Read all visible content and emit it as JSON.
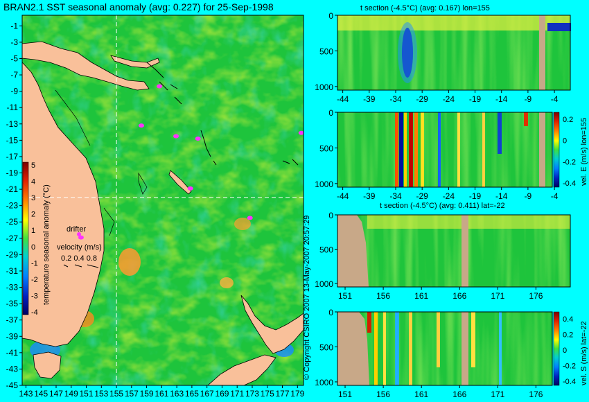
{
  "colors": {
    "background": "#00ffff",
    "ocean_base": "#1ec43c",
    "land": "#f9c09a",
    "section_land": "#c8a888",
    "drifter": "#ff33ff"
  },
  "chart_data": [
    {
      "id": "map",
      "type": "heatmap",
      "title": "BRAN2.1 SST seasonal anomaly (avg: 0.227) for 25-Sep-1998",
      "x": {
        "ticks": [
          143,
          145,
          147,
          149,
          151,
          153,
          155,
          157,
          159,
          161,
          163,
          165,
          167,
          169,
          171,
          173,
          175,
          177,
          179
        ],
        "range": [
          142.5,
          179.8
        ]
      },
      "y": {
        "ticks": [
          -1,
          -3,
          -5,
          -7,
          -9,
          -11,
          -13,
          -15,
          -17,
          -19,
          -21,
          -23,
          -25,
          -27,
          -29,
          -31,
          -33,
          -35,
          -37,
          -39,
          -41,
          -43,
          -45
        ],
        "range": [
          0.3,
          -45
        ]
      },
      "crosshair": {
        "lon": 155,
        "lat": -22
      },
      "colorbar": {
        "label": "temperature seasonal anomaly (°C)",
        "ticks": [
          "5",
          "4",
          "3",
          "2",
          "1",
          "0",
          "-1",
          "-2",
          "-3",
          "-4"
        ]
      },
      "legend": {
        "drifter": "drifter",
        "velocity_label": "velocity (m/s)",
        "velocity_values": "0.2 0.4 0.8"
      },
      "drifters": [
        {
          "lon": 160.7,
          "lat": -8.4
        },
        {
          "lon": 158.3,
          "lat": -13.2
        },
        {
          "lon": 162.9,
          "lat": -14.5
        },
        {
          "lon": 165.8,
          "lat": -14.8
        },
        {
          "lon": 179.5,
          "lat": -14.1
        },
        {
          "lon": 164.8,
          "lat": -20.9
        },
        {
          "lon": 172.7,
          "lat": -24.5
        },
        {
          "lon": 150.3,
          "lat": -26.9
        }
      ]
    },
    {
      "id": "t_section_lon",
      "type": "heatmap",
      "title": "t section (-4.5°C) (avg: 0.167) lon=155",
      "x": {
        "ticks": [
          -44,
          -39,
          -34,
          -29,
          -24,
          -19,
          -14,
          -9,
          -4
        ],
        "range": [
          -45,
          -1
        ]
      },
      "y": {
        "ticks": [
          0,
          500,
          1000
        ],
        "range": [
          0,
          1050
        ]
      }
    },
    {
      "id": "vel_e_section",
      "type": "heatmap",
      "x": {
        "ticks": [
          -44,
          -39,
          -34,
          -29,
          -24,
          -19,
          -14,
          -9,
          -4
        ],
        "range": [
          -45,
          -1
        ]
      },
      "y": {
        "ticks": [
          0,
          500,
          1000
        ],
        "range": [
          0,
          1050
        ]
      },
      "colorbar": {
        "label": "vel. E (m/s) lon=155",
        "ticks": [
          "0.2",
          "0",
          "-0.2",
          "-0.4"
        ]
      }
    },
    {
      "id": "t_section_lat",
      "type": "heatmap",
      "title": "t section (-4.5°C) (avg: 0.411) lat=-22",
      "x": {
        "ticks": [
          151,
          156,
          161,
          166,
          171,
          176
        ],
        "range": [
          150,
          180.5
        ]
      },
      "y": {
        "ticks": [
          0,
          500,
          1000
        ],
        "range": [
          0,
          1050
        ]
      }
    },
    {
      "id": "vel_s_section",
      "type": "heatmap",
      "x": {
        "ticks": [
          151,
          156,
          161,
          166,
          171,
          176
        ],
        "range": [
          150,
          180.5
        ]
      },
      "y": {
        "ticks": [
          0,
          500,
          1000
        ],
        "range": [
          0,
          1050
        ]
      },
      "colorbar": {
        "label": "vel. S (m/s) lat=-22",
        "ticks": [
          "0.4",
          "0.2",
          "0",
          "-0.2",
          "-0.4"
        ]
      }
    }
  ],
  "credit": "© Copyright CSIRO 2007  13-May-2007 20:57:29"
}
